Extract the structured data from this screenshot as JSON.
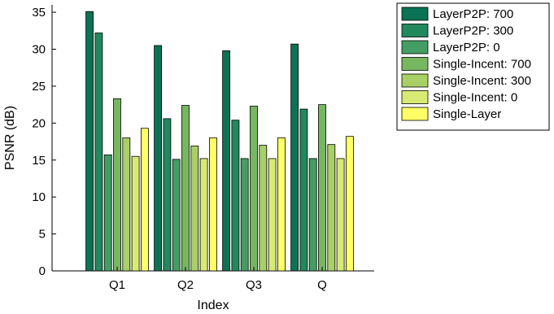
{
  "chart_data": {
    "type": "bar",
    "xlabel": "Index",
    "ylabel": "PSNR (dB)",
    "ylim": [
      0,
      36
    ],
    "yticks": [
      0,
      5,
      10,
      15,
      20,
      25,
      30,
      35
    ],
    "grid": false,
    "legend_position": "right",
    "categories": [
      "Q1",
      "Q2",
      "Q3",
      "Q"
    ],
    "series": [
      {
        "name": "LayerP2P: 700",
        "color": "#0a7354",
        "values": [
          35.1,
          30.5,
          29.8,
          30.7
        ]
      },
      {
        "name": "LayerP2P: 300",
        "color": "#22885e",
        "values": [
          32.2,
          20.6,
          20.4,
          21.9
        ]
      },
      {
        "name": "LayerP2P: 0",
        "color": "#449e64",
        "values": [
          15.7,
          15.1,
          15.2,
          15.2
        ]
      },
      {
        "name": "Single-Incent: 700",
        "color": "#76b760",
        "values": [
          23.3,
          22.4,
          22.3,
          22.5
        ]
      },
      {
        "name": "Single-Incent: 300",
        "color": "#a8d064",
        "values": [
          18.0,
          16.9,
          17.0,
          17.1
        ]
      },
      {
        "name": "Single-Incent: 0",
        "color": "#d8ea73",
        "values": [
          15.5,
          15.2,
          15.2,
          15.2
        ]
      },
      {
        "name": "Single-Layer",
        "color": "#ffff66",
        "values": [
          19.3,
          18.0,
          18.0,
          18.2
        ]
      }
    ]
  }
}
